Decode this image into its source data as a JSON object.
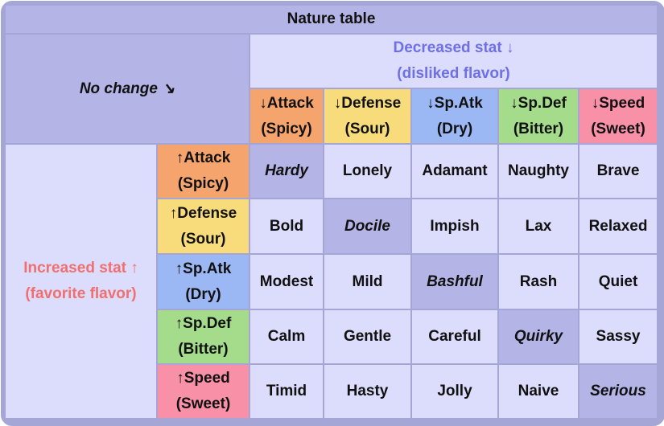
{
  "title": "Nature table",
  "no_change": "No change ↘",
  "decreased": {
    "line1": "Decreased stat ↓",
    "line2": "(disliked flavor)"
  },
  "increased": {
    "line1": "Increased stat ↑",
    "line2": "(favorite flavor)"
  },
  "columns": [
    {
      "stat": "↓Attack",
      "flavor": "(Spicy)",
      "color": "#f4a46c"
    },
    {
      "stat": "↓Defense",
      "flavor": "(Sour)",
      "color": "#f8dc7c"
    },
    {
      "stat": "↓Sp.Atk",
      "flavor": "(Dry)",
      "color": "#9cb8f4"
    },
    {
      "stat": "↓Sp.Def",
      "flavor": "(Bitter)",
      "color": "#a4dc8c"
    },
    {
      "stat": "↓Speed",
      "flavor": "(Sweet)",
      "color": "#f890a8"
    }
  ],
  "rows": [
    {
      "stat": "↑Attack",
      "flavor": "(Spicy)",
      "natures": [
        "Hardy",
        "Lonely",
        "Adamant",
        "Naughty",
        "Brave"
      ]
    },
    {
      "stat": "↑Defense",
      "flavor": "(Sour)",
      "natures": [
        "Bold",
        "Docile",
        "Impish",
        "Lax",
        "Relaxed"
      ]
    },
    {
      "stat": "↑Sp.Atk",
      "flavor": "(Dry)",
      "natures": [
        "Modest",
        "Mild",
        "Bashful",
        "Rash",
        "Quiet"
      ]
    },
    {
      "stat": "↑Sp.Def",
      "flavor": "(Bitter)",
      "natures": [
        "Calm",
        "Gentle",
        "Careful",
        "Quirky",
        "Sassy"
      ]
    },
    {
      "stat": "↑Speed",
      "flavor": "(Sweet)",
      "natures": [
        "Timid",
        "Hasty",
        "Jolly",
        "Naive",
        "Serious"
      ]
    }
  ]
}
